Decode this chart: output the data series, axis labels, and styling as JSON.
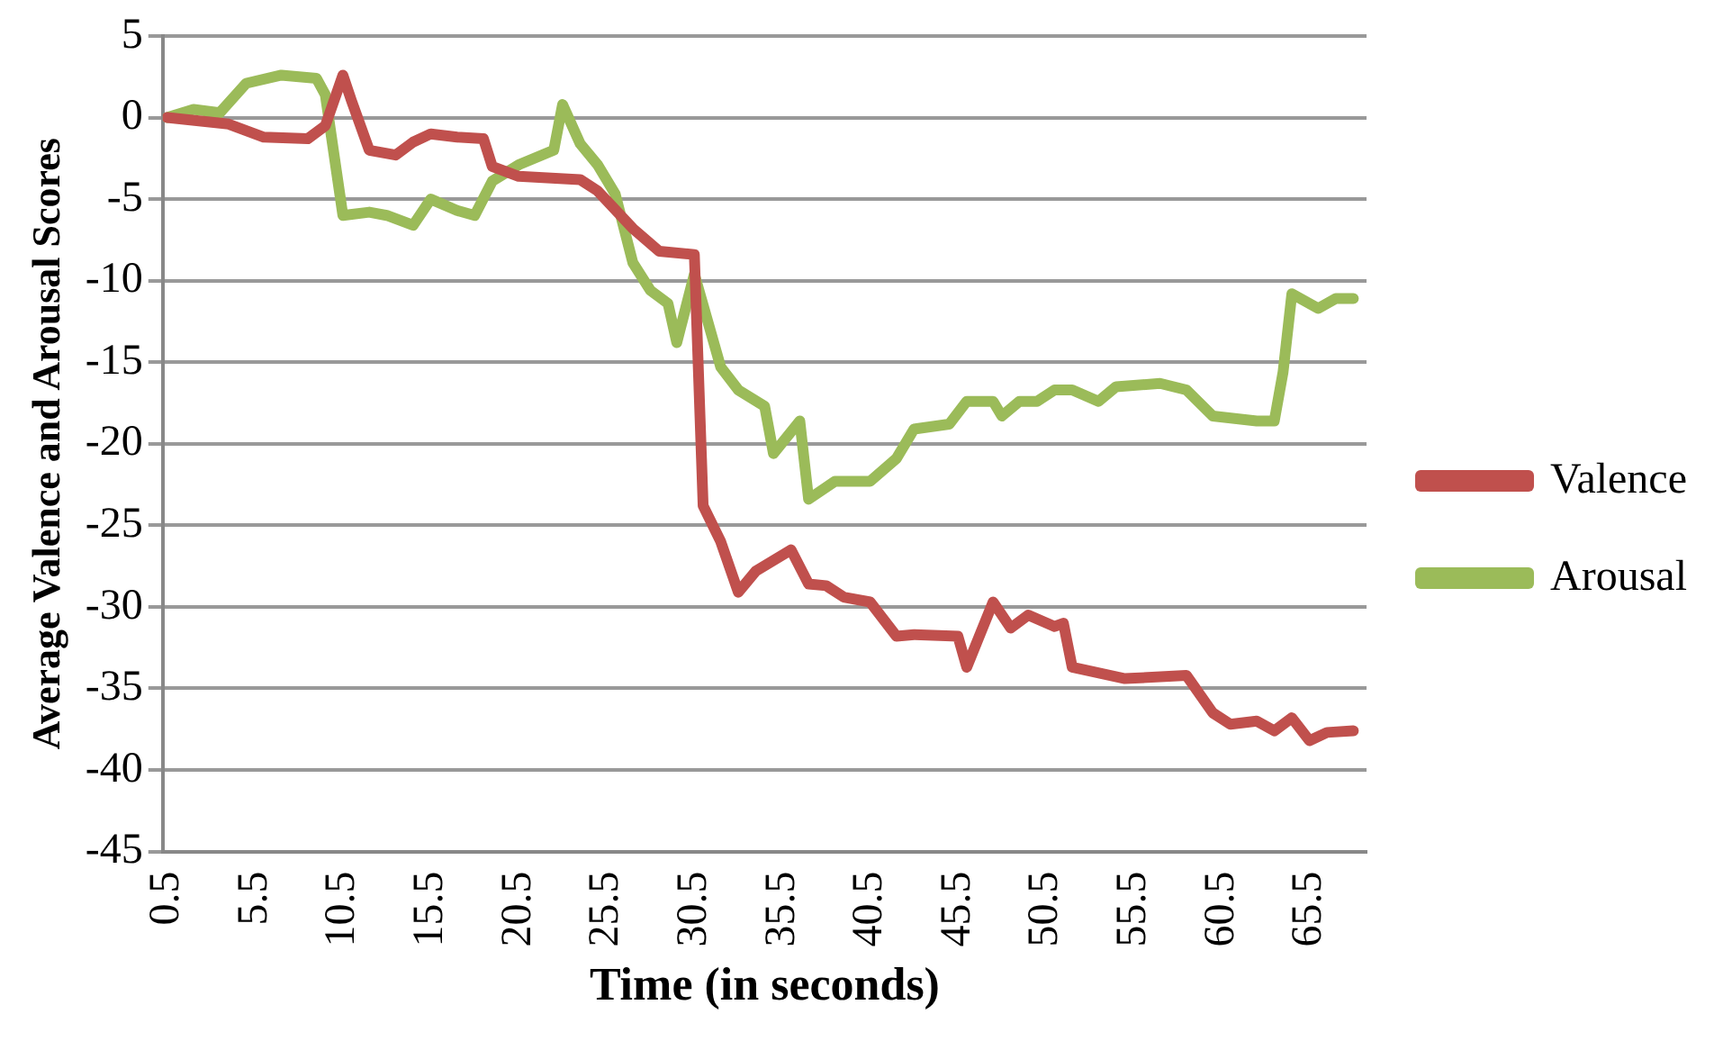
{
  "chart_data": {
    "type": "line",
    "xlabel": "Time (in seconds)",
    "ylabel": "Average Valence and Arousal Scores",
    "xlim": [
      0.25,
      68.75
    ],
    "xticks": [
      0.5,
      5.5,
      10.5,
      15.5,
      20.5,
      25.5,
      30.5,
      35.5,
      40.5,
      45.5,
      50.5,
      55.5,
      60.5,
      65.5
    ],
    "ylim": [
      -45,
      5
    ],
    "yticks": [
      5,
      0,
      -5,
      -10,
      -15,
      -20,
      -25,
      -30,
      -35,
      -40,
      -45
    ],
    "grid": "y",
    "legend": "right",
    "marker": "none",
    "line_style": "solid",
    "series": [
      {
        "name": "Valence",
        "color": "#c0504d",
        "x": [
          0.5,
          4,
          6,
          8.5,
          9.5,
          10.5,
          11,
          12,
          13.5,
          14.5,
          15.5,
          17,
          18.5,
          19,
          20.5,
          24,
          25,
          27,
          28.5,
          30.5,
          31,
          32,
          33,
          34,
          36,
          37,
          38,
          39,
          40.5,
          42,
          43,
          45.5,
          46,
          47.5,
          48.5,
          49.5,
          51,
          51.5,
          52,
          55,
          58.5,
          60,
          61,
          62.5,
          63.5,
          64.5,
          65.5,
          66.5,
          68
        ],
        "values": [
          0,
          -0.4,
          -1.2,
          -1.3,
          -0.5,
          2.6,
          1,
          -2,
          -2.3,
          -1.5,
          -1,
          -1.2,
          -1.3,
          -3,
          -3.6,
          -3.8,
          -4.5,
          -6.8,
          -8.2,
          -8.4,
          -23.8,
          -26,
          -29.1,
          -27.8,
          -26.5,
          -28.6,
          -28.7,
          -29.4,
          -29.7,
          -31.8,
          -31.7,
          -31.8,
          -33.7,
          -29.7,
          -31.3,
          -30.5,
          -31.2,
          -31,
          -33.7,
          -34.4,
          -34.2,
          -36.5,
          -37.2,
          -37,
          -37.6,
          -36.8,
          -38.2,
          -37.7,
          -37.6
        ]
      },
      {
        "name": "Arousal",
        "color": "#9bbb59",
        "x": [
          0.5,
          2,
          3.5,
          5,
          7,
          9,
          9.5,
          10.5,
          12,
          13,
          14.5,
          15.5,
          17,
          18,
          19,
          20.5,
          22.5,
          23,
          24,
          25,
          26,
          27,
          28,
          29,
          29.5,
          30.5,
          32,
          33,
          34.5,
          35,
          36.5,
          37,
          38.5,
          40.5,
          42,
          43,
          45,
          46,
          47.5,
          48,
          49,
          50,
          51,
          52,
          53.5,
          54.5,
          57,
          58.5,
          60,
          62.5,
          63.5,
          64,
          64.5,
          66,
          67,
          68
        ],
        "values": [
          0,
          0.5,
          0.3,
          2.1,
          2.6,
          2.4,
          1.4,
          -6,
          -5.8,
          -6,
          -6.6,
          -5,
          -5.7,
          -6,
          -3.9,
          -2.9,
          -2,
          0.8,
          -1.6,
          -2.9,
          -4.7,
          -8.9,
          -10.6,
          -11.4,
          -13.8,
          -9.6,
          -15.3,
          -16.7,
          -17.7,
          -20.6,
          -18.6,
          -23.4,
          -22.3,
          -22.3,
          -20.9,
          -19.1,
          -18.8,
          -17.4,
          -17.4,
          -18.3,
          -17.4,
          -17.4,
          -16.7,
          -16.7,
          -17.4,
          -16.5,
          -16.3,
          -16.7,
          -18.3,
          -18.6,
          -18.6,
          -15.6,
          -10.8,
          -11.7,
          -11.1,
          -11.1
        ]
      }
    ]
  }
}
